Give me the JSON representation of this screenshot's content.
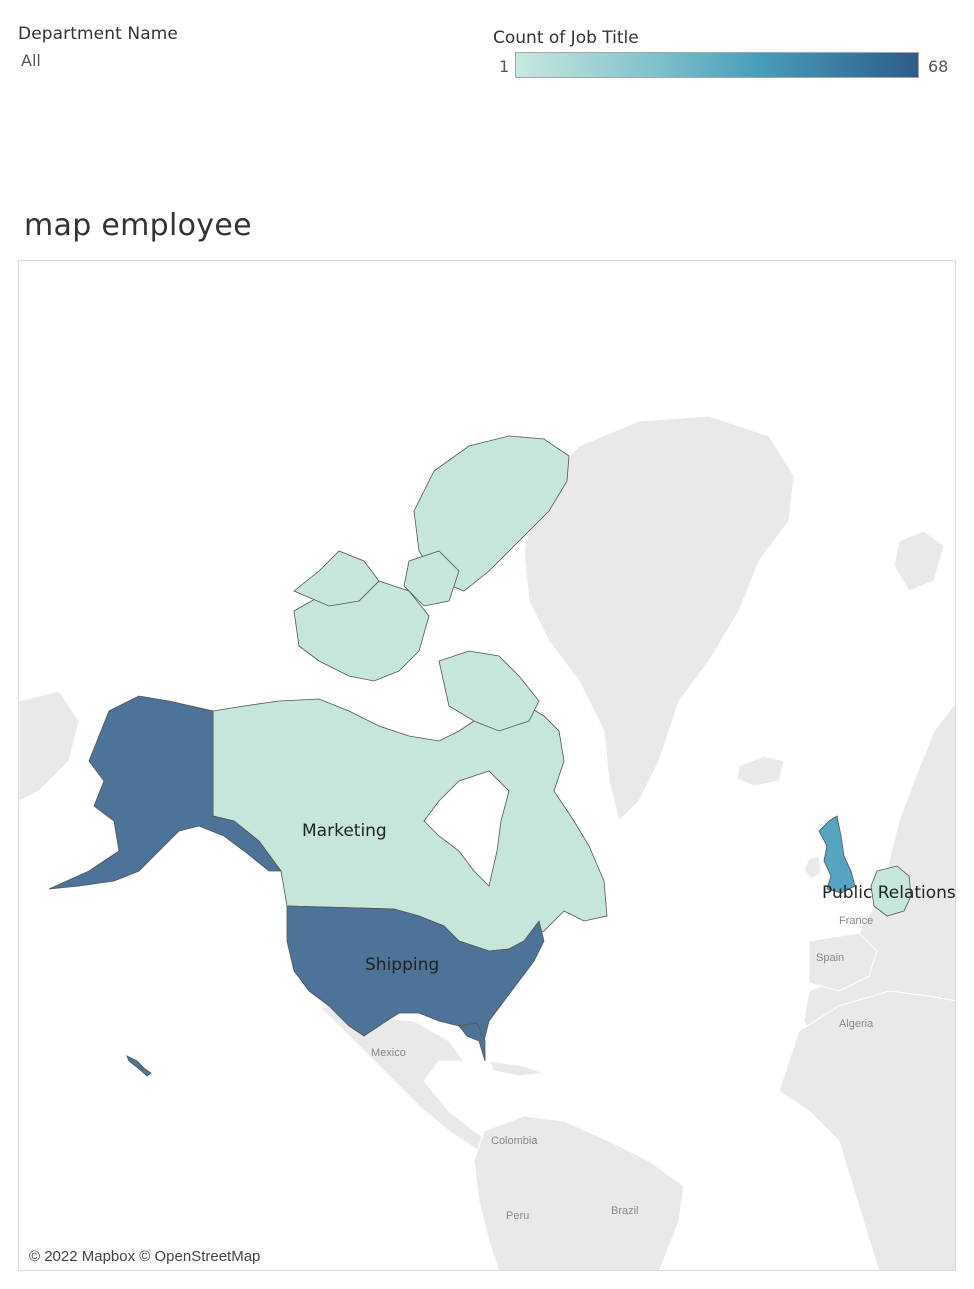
{
  "filter": {
    "title": "Department Name",
    "value": "All"
  },
  "legend": {
    "title": "Count of Job Title",
    "min": "1",
    "max": "68",
    "color_low": "#c8e8df",
    "color_high": "#2e5c87"
  },
  "sheet": {
    "title": "map employee"
  },
  "map": {
    "attribution": "© 2022 Mapbox © OpenStreetMap",
    "colors": {
      "canada": "#c6e6dc",
      "united_states": "#4e7399",
      "united_kingdom": "#56a4c2",
      "germany": "#c6e6dc",
      "base_land": "#e9e9e9",
      "border": "#555555"
    },
    "mark_labels": {
      "canada": "Marketing",
      "united_states": "Shipping",
      "germany": "Public Relations"
    },
    "base_labels": {
      "mexico": "Mexico",
      "colombia": "Colombia",
      "peru": "Peru",
      "brazil": "Brazil",
      "france": "France",
      "spain": "Spain",
      "algeria": "Algeria"
    }
  }
}
